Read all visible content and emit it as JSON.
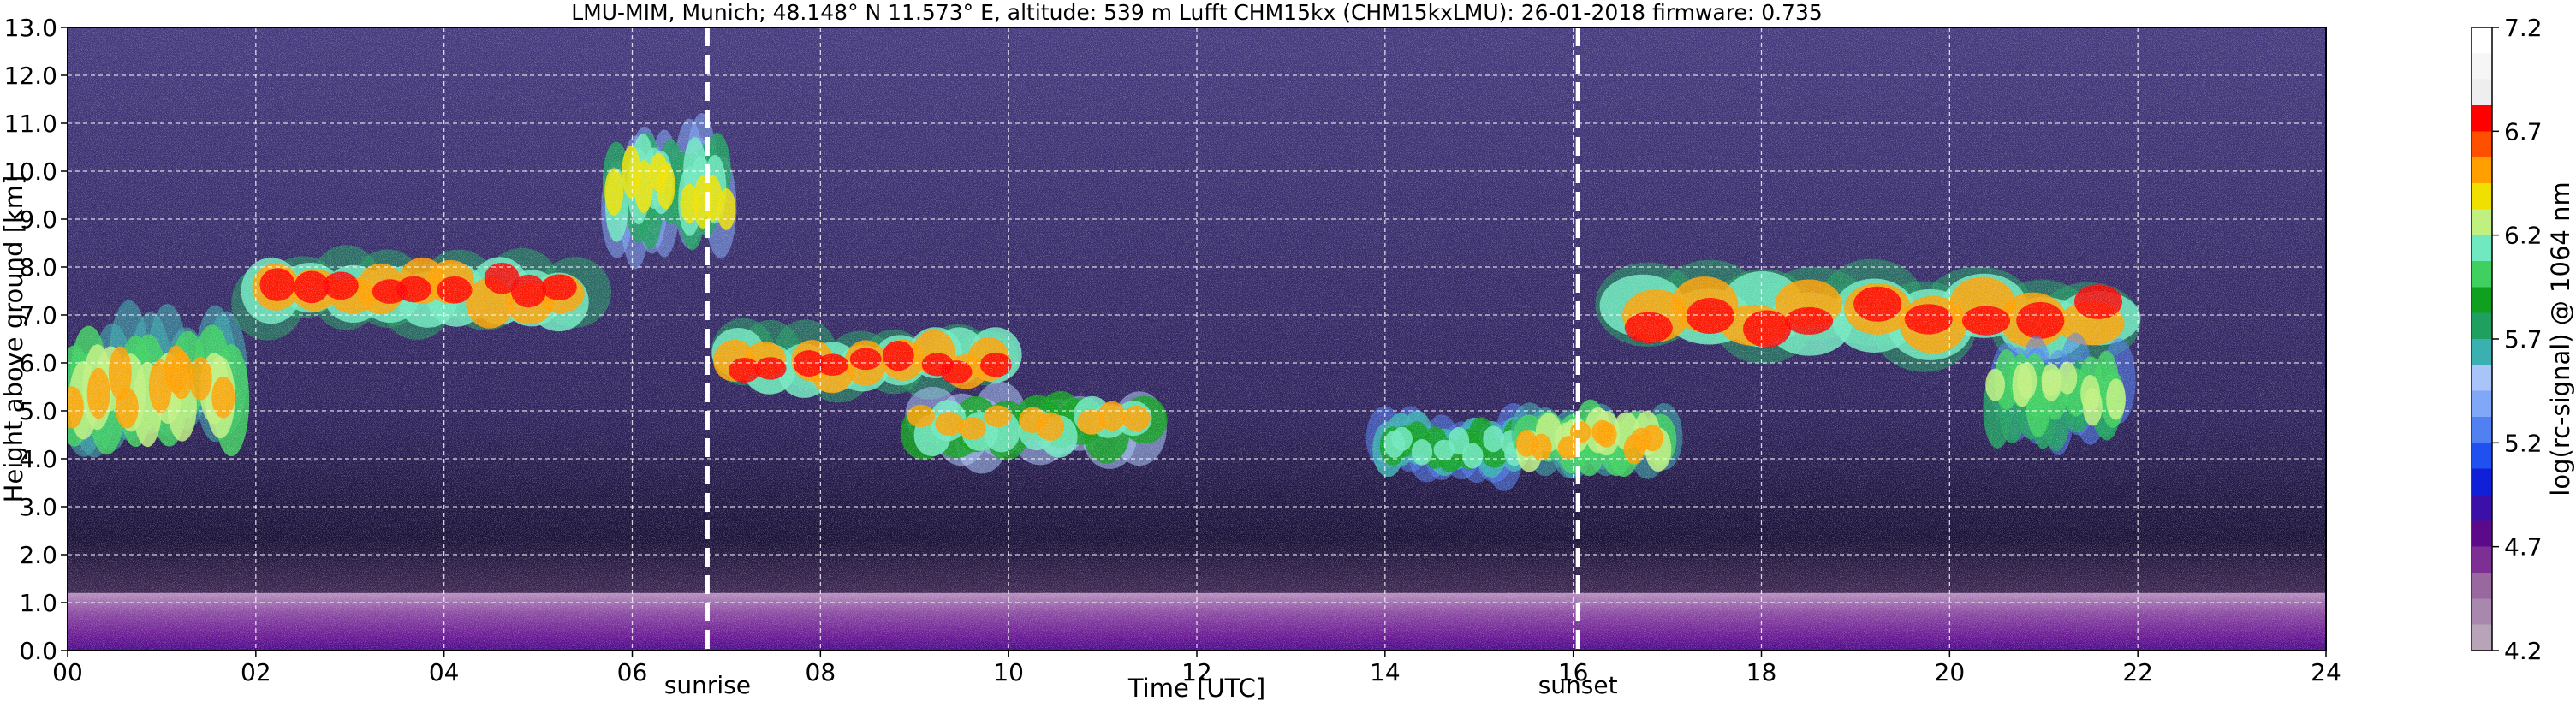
{
  "chart_data": {
    "type": "heatmap",
    "title": "LMU-MIM, Munich; 48.148° N 11.573° E, altitude: 539 m    Lufft CHM15kx (CHM15kxLMU): 26-01-2018    firmware: 0.735",
    "xlabel": "Time [UTC]",
    "ylabel": "Height above ground [km]",
    "xlim": [
      0,
      24
    ],
    "ylim": [
      0,
      13
    ],
    "x_tick_labels": [
      "00",
      "02",
      "04",
      "06",
      "08",
      "10",
      "12",
      "14",
      "16",
      "18",
      "20",
      "22",
      "24"
    ],
    "y_tick_labels": [
      "0.0",
      "1.0",
      "2.0",
      "3.0",
      "4.0",
      "5.0",
      "6.0",
      "7.0",
      "8.0",
      "9.0",
      "10.0",
      "11.0",
      "12.0",
      "13.0"
    ],
    "grid": true,
    "colorbar": {
      "label": "log(rc-signal) @ 1064 nm",
      "range": [
        4.2,
        7.2
      ],
      "tick_labels": [
        "4.2",
        "4.7",
        "5.2",
        "5.7",
        "6.2",
        "6.7",
        "7.2"
      ],
      "colors": [
        "#b8a4b8",
        "#a888ac",
        "#98689f",
        "#7d2f93",
        "#5c0a8a",
        "#3a10a8",
        "#1020d8",
        "#2050f0",
        "#5080f2",
        "#80a8f6",
        "#a8c4f8",
        "#3ab0b0",
        "#20a060",
        "#10a020",
        "#40d060",
        "#70e8c0",
        "#c0f080",
        "#f0e000",
        "#ffa000",
        "#ff5000",
        "#ff0000",
        "#eeeeee",
        "#f6f6f6",
        "#ffffff"
      ]
    },
    "annotations": [
      {
        "text": "sunrise",
        "x": 6.8
      },
      {
        "text": "sunset",
        "x": 16.05
      }
    ],
    "cloud_layers": [
      {
        "x_start": 0.0,
        "x_end": 1.8,
        "y_low": 4.0,
        "y_high": 7.0,
        "intensity": 6.6
      },
      {
        "x_start": 2.0,
        "x_end": 5.5,
        "y_low": 6.6,
        "y_high": 8.4,
        "intensity": 6.8
      },
      {
        "x_start": 5.8,
        "x_end": 7.0,
        "y_low": 8.2,
        "y_high": 11.0,
        "intensity": 6.4
      },
      {
        "x_start": 7.0,
        "x_end": 10.0,
        "y_low": 5.2,
        "y_high": 6.8,
        "intensity": 6.8
      },
      {
        "x_start": 9.0,
        "x_end": 11.5,
        "y_low": 3.9,
        "y_high": 5.5,
        "intensity": 6.5
      },
      {
        "x_start": 14.0,
        "x_end": 15.5,
        "y_low": 3.5,
        "y_high": 5.0,
        "intensity": 6.2
      },
      {
        "x_start": 15.5,
        "x_end": 17.0,
        "y_low": 3.6,
        "y_high": 5.2,
        "intensity": 6.6
      },
      {
        "x_start": 16.5,
        "x_end": 21.8,
        "y_low": 6.0,
        "y_high": 8.0,
        "intensity": 6.8
      },
      {
        "x_start": 20.5,
        "x_end": 21.8,
        "y_low": 4.2,
        "y_high": 6.5,
        "intensity": 6.3
      }
    ],
    "boundary_layer": {
      "y_low": 0.0,
      "y_high": 1.2,
      "intensity": 4.9
    }
  }
}
